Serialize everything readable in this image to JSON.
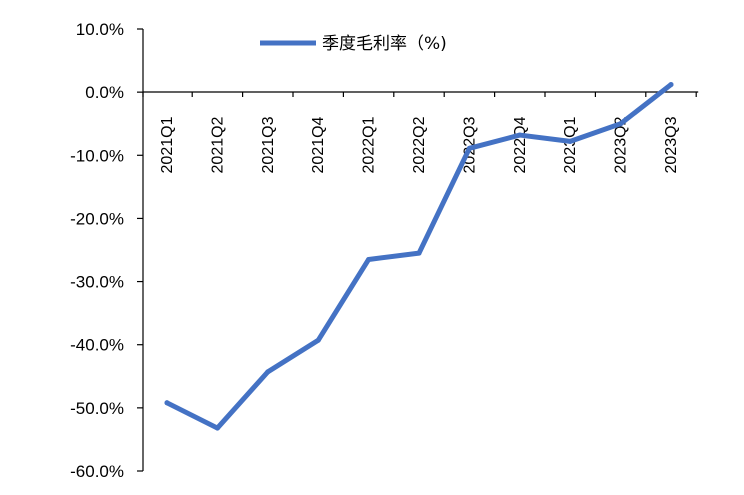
{
  "chart_data": {
    "type": "line",
    "categories": [
      "2021Q1",
      "2021Q2",
      "2021Q3",
      "2021Q4",
      "2022Q1",
      "2022Q2",
      "2022Q3",
      "2022Q4",
      "2023Q1",
      "2023Q2",
      "2023Q3"
    ],
    "series": [
      {
        "name": "季度毛利率（%)",
        "values": [
          -49.2,
          -53.2,
          -44.3,
          -39.3,
          -26.5,
          -25.5,
          -8.9,
          -6.8,
          -7.8,
          -5.0,
          1.2
        ],
        "color": "#4472C4"
      }
    ],
    "yticks": [
      "10.0%",
      "0.0%",
      "-10.0%",
      "-20.0%",
      "-30.0%",
      "-40.0%",
      "-50.0%",
      "-60.0%"
    ],
    "ylim": [
      -60,
      10
    ],
    "grid": false,
    "legend": "top-center"
  }
}
